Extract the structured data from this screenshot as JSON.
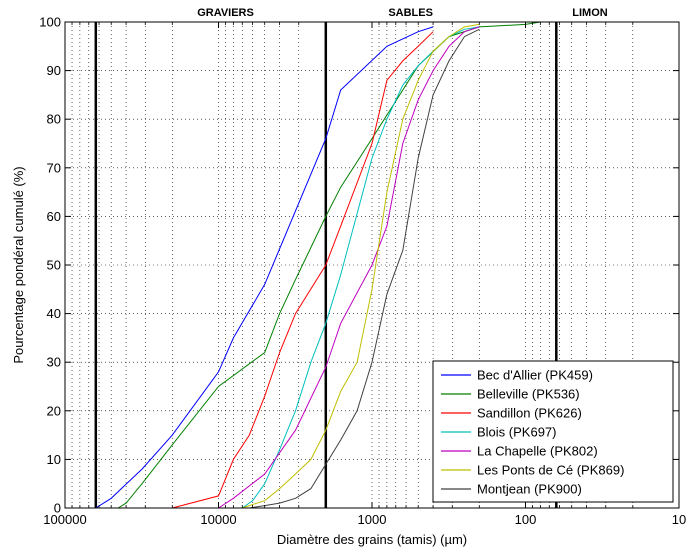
{
  "chart_data": {
    "type": "line",
    "xscale": "log-reversed",
    "xlim": [
      100000,
      10
    ],
    "ylim": [
      0,
      100
    ],
    "xlabel": "Diamètre des grains (tamis) (µm)",
    "ylabel": "Pourcentage pondéral cumulé (%)",
    "x_ticks": [
      100000,
      10000,
      1000,
      100,
      10
    ],
    "x_tick_labels": [
      "100000",
      "10000",
      "1000",
      "100",
      "10"
    ],
    "y_ticks": [
      0,
      10,
      20,
      30,
      40,
      50,
      60,
      70,
      80,
      90,
      100
    ],
    "y_tick_labels": [
      "0",
      "10",
      "20",
      "30",
      "40",
      "50",
      "60",
      "70",
      "80",
      "90",
      "100"
    ],
    "grid": "dotted, log minor",
    "boundaries": [
      63000,
      2000,
      63
    ],
    "zones": [
      {
        "label": "GRAVIERS",
        "x": 9000
      },
      {
        "label": "SABLES",
        "x": 560
      },
      {
        "label": "LIMON",
        "x": 38
      }
    ],
    "legend_position": "lower-right",
    "series": [
      {
        "name": "Bec d'Allier (PK459)",
        "color": "#0000ff",
        "x": [
          63000,
          50000,
          31500,
          20000,
          10000,
          8000,
          5000,
          2000,
          1600,
          800,
          500,
          400
        ],
        "y": [
          0,
          2,
          8,
          15,
          28,
          35,
          46,
          76,
          86,
          95,
          98,
          99
        ]
      },
      {
        "name": "Belleville (PK536)",
        "color": "#008000",
        "x": [
          45000,
          40000,
          31500,
          20000,
          10000,
          5000,
          4000,
          3150,
          2000,
          1600,
          1000,
          630,
          500,
          315,
          200,
          100,
          80
        ],
        "y": [
          0,
          1,
          5,
          13,
          25,
          32,
          40,
          47,
          60,
          66,
          76,
          86,
          91,
          97,
          99,
          99.5,
          100
        ]
      },
      {
        "name": "Sandillon (PK626)",
        "color": "#ff0000",
        "x": [
          20000,
          10000,
          8000,
          6300,
          5000,
          4000,
          3150,
          2000,
          1600,
          1000,
          800,
          630,
          500,
          400
        ],
        "y": [
          0,
          2.5,
          10,
          15,
          23,
          32,
          40,
          50,
          58,
          75,
          88,
          92,
          95,
          98
        ]
      },
      {
        "name": "Blois (PK697)",
        "color": "#00bfbf",
        "x": [
          7000,
          6000,
          5000,
          4000,
          3150,
          2500,
          2000,
          1600,
          1000,
          800,
          630,
          500,
          400,
          315,
          250,
          200
        ],
        "y": [
          0,
          1.5,
          5,
          12,
          20,
          30,
          38,
          48,
          72,
          80,
          87,
          91,
          94,
          97,
          98.5,
          99
        ]
      },
      {
        "name": "La Chapelle (PK802)",
        "color": "#bf00bf",
        "x": [
          10000,
          8000,
          5000,
          3150,
          2000,
          1600,
          1000,
          800,
          630,
          500,
          400,
          315,
          250,
          200
        ],
        "y": [
          0,
          2,
          7,
          16,
          29,
          38,
          50,
          58,
          75,
          84,
          90,
          95,
          98,
          99
        ]
      },
      {
        "name": "Les Ponts de Cé (PK869)",
        "color": "#bfbf00",
        "x": [
          7000,
          6300,
          5000,
          4000,
          3150,
          2500,
          2000,
          1600,
          1250,
          1000,
          800,
          630,
          500,
          400,
          315,
          250,
          200
        ],
        "y": [
          0,
          0.5,
          1.5,
          4,
          7,
          10,
          16,
          24,
          30,
          45,
          65,
          80,
          88,
          94,
          97,
          99,
          99.5
        ]
      },
      {
        "name": "Montjean (PK900)",
        "color": "#404040",
        "x": [
          6300,
          5000,
          4000,
          3150,
          2500,
          2000,
          1600,
          1250,
          1000,
          800,
          630,
          500,
          400,
          315,
          250,
          200
        ],
        "y": [
          0,
          0.5,
          1,
          2,
          4,
          9,
          14,
          20,
          30,
          44,
          53,
          72,
          85,
          92,
          97,
          98.5
        ]
      }
    ]
  }
}
